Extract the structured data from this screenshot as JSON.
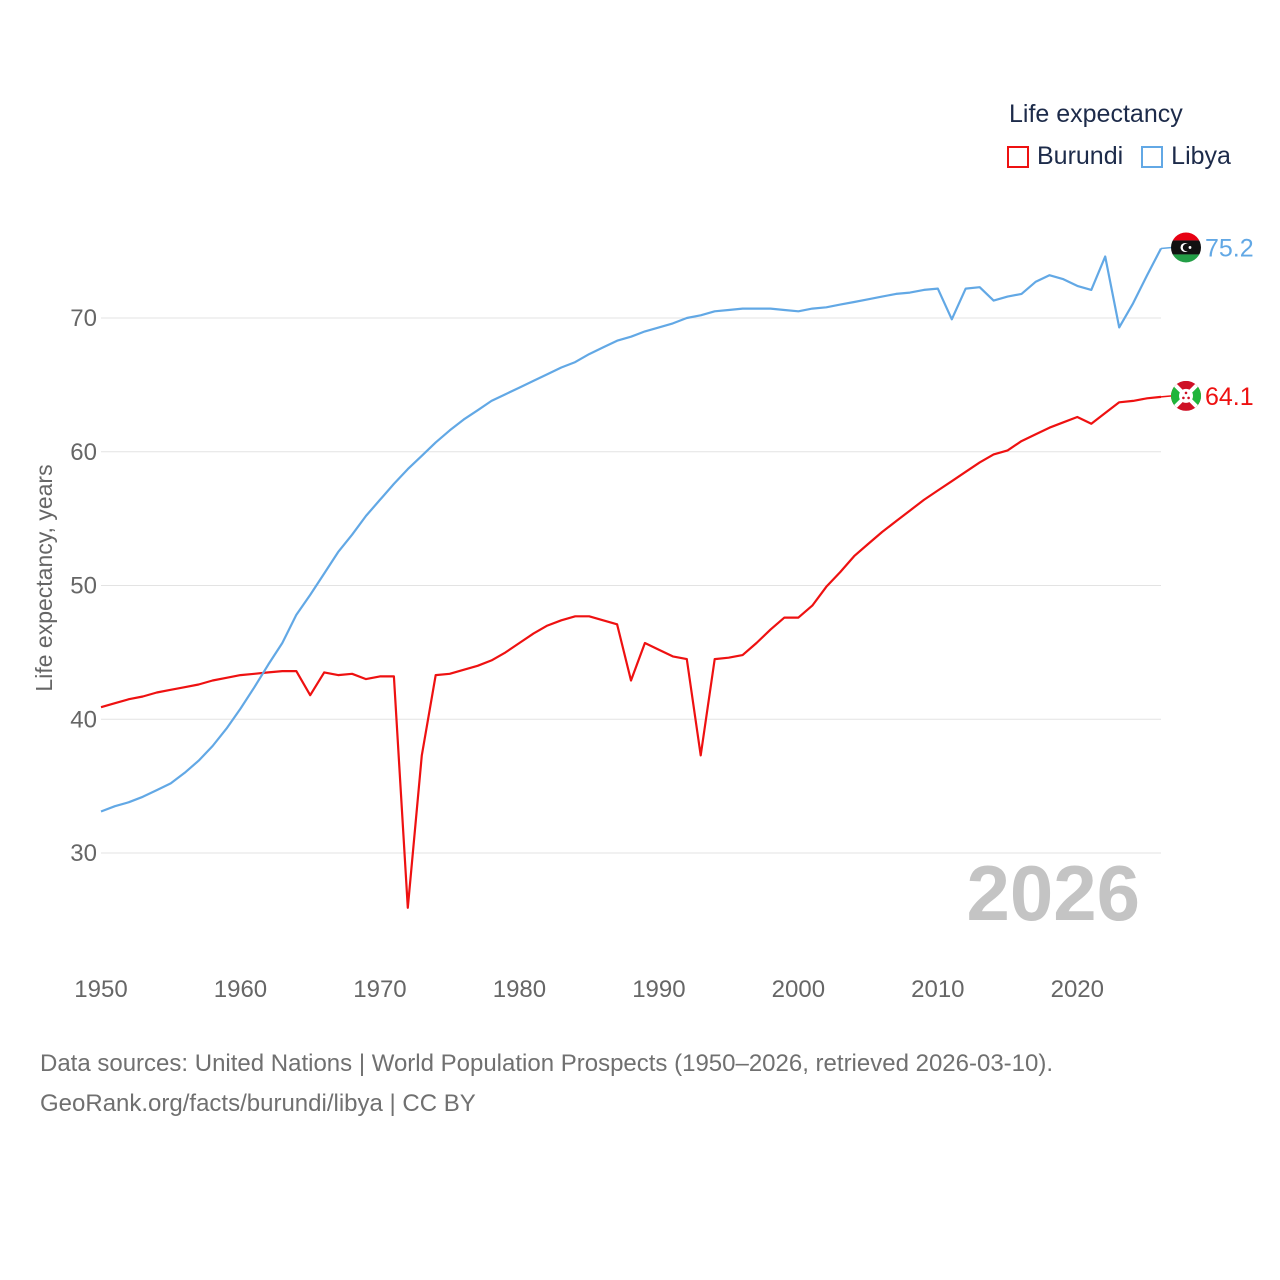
{
  "legend": {
    "title": "Life expectancy",
    "items": [
      {
        "label": "Burundi",
        "color": "#ee1111"
      },
      {
        "label": "Libya",
        "color": "#62a8e5"
      }
    ]
  },
  "year_label": "2026",
  "footer": {
    "line1": "Data sources: United Nations | World Population Prospects (1950–2026, retrieved 2026-03-10).",
    "line2": "GeoRank.org/facts/burundi/libya | CC BY"
  },
  "chart_data": {
    "type": "line",
    "title": "Life expectancy",
    "xlabel": "",
    "ylabel": "Life expectancy, years",
    "xlim": [
      1950,
      2026
    ],
    "ylim": [
      24,
      78
    ],
    "x_ticks": [
      1950,
      1960,
      1970,
      1980,
      1990,
      2000,
      2010,
      2020
    ],
    "y_ticks": [
      30,
      40,
      50,
      60,
      70
    ],
    "grid": true,
    "series": [
      {
        "name": "Burundi",
        "color": "#ee1111",
        "end_label": "64.1",
        "icon": "burundi-flag-icon",
        "points": [
          [
            1950,
            40.9
          ],
          [
            1951,
            41.2
          ],
          [
            1952,
            41.5
          ],
          [
            1953,
            41.7
          ],
          [
            1954,
            42.0
          ],
          [
            1955,
            42.2
          ],
          [
            1956,
            42.4
          ],
          [
            1957,
            42.6
          ],
          [
            1958,
            42.9
          ],
          [
            1959,
            43.1
          ],
          [
            1960,
            43.3
          ],
          [
            1961,
            43.4
          ],
          [
            1962,
            43.5
          ],
          [
            1963,
            43.6
          ],
          [
            1964,
            43.6
          ],
          [
            1965,
            41.8
          ],
          [
            1966,
            43.5
          ],
          [
            1967,
            43.3
          ],
          [
            1968,
            43.4
          ],
          [
            1969,
            43.0
          ],
          [
            1970,
            43.2
          ],
          [
            1971,
            43.2
          ],
          [
            1972,
            25.9
          ],
          [
            1973,
            37.3
          ],
          [
            1974,
            43.3
          ],
          [
            1975,
            43.4
          ],
          [
            1976,
            43.7
          ],
          [
            1977,
            44.0
          ],
          [
            1978,
            44.4
          ],
          [
            1979,
            45.0
          ],
          [
            1980,
            45.7
          ],
          [
            1981,
            46.4
          ],
          [
            1982,
            47.0
          ],
          [
            1983,
            47.4
          ],
          [
            1984,
            47.7
          ],
          [
            1985,
            47.7
          ],
          [
            1986,
            47.4
          ],
          [
            1987,
            47.1
          ],
          [
            1988,
            42.9
          ],
          [
            1989,
            45.7
          ],
          [
            1990,
            45.2
          ],
          [
            1991,
            44.7
          ],
          [
            1992,
            44.5
          ],
          [
            1993,
            37.3
          ],
          [
            1994,
            44.5
          ],
          [
            1995,
            44.6
          ],
          [
            1996,
            44.8
          ],
          [
            1997,
            45.7
          ],
          [
            1998,
            46.7
          ],
          [
            1999,
            47.6
          ],
          [
            2000,
            47.6
          ],
          [
            2001,
            48.5
          ],
          [
            2002,
            49.9
          ],
          [
            2003,
            51.0
          ],
          [
            2004,
            52.2
          ],
          [
            2005,
            53.1
          ],
          [
            2006,
            54.0
          ],
          [
            2007,
            54.8
          ],
          [
            2008,
            55.6
          ],
          [
            2009,
            56.4
          ],
          [
            2010,
            57.1
          ],
          [
            2011,
            57.8
          ],
          [
            2012,
            58.5
          ],
          [
            2013,
            59.2
          ],
          [
            2014,
            59.8
          ],
          [
            2015,
            60.1
          ],
          [
            2016,
            60.8
          ],
          [
            2017,
            61.3
          ],
          [
            2018,
            61.8
          ],
          [
            2019,
            62.2
          ],
          [
            2020,
            62.6
          ],
          [
            2021,
            62.1
          ],
          [
            2022,
            62.9
          ],
          [
            2023,
            63.7
          ],
          [
            2024,
            63.8
          ],
          [
            2025,
            64.0
          ],
          [
            2026,
            64.1
          ]
        ]
      },
      {
        "name": "Libya",
        "color": "#62a8e5",
        "end_label": "75.2",
        "icon": "libya-flag-icon",
        "points": [
          [
            1950,
            33.1
          ],
          [
            1951,
            33.5
          ],
          [
            1952,
            33.8
          ],
          [
            1953,
            34.2
          ],
          [
            1954,
            34.7
          ],
          [
            1955,
            35.2
          ],
          [
            1956,
            36.0
          ],
          [
            1957,
            36.9
          ],
          [
            1958,
            38.0
          ],
          [
            1959,
            39.3
          ],
          [
            1960,
            40.8
          ],
          [
            1961,
            42.4
          ],
          [
            1962,
            44.1
          ],
          [
            1963,
            45.7
          ],
          [
            1964,
            47.8
          ],
          [
            1965,
            49.3
          ],
          [
            1966,
            50.9
          ],
          [
            1967,
            52.5
          ],
          [
            1968,
            53.8
          ],
          [
            1969,
            55.2
          ],
          [
            1970,
            56.4
          ],
          [
            1971,
            57.6
          ],
          [
            1972,
            58.7
          ],
          [
            1973,
            59.7
          ],
          [
            1974,
            60.7
          ],
          [
            1975,
            61.6
          ],
          [
            1976,
            62.4
          ],
          [
            1977,
            63.1
          ],
          [
            1978,
            63.8
          ],
          [
            1979,
            64.3
          ],
          [
            1980,
            64.8
          ],
          [
            1981,
            65.3
          ],
          [
            1982,
            65.8
          ],
          [
            1983,
            66.3
          ],
          [
            1984,
            66.7
          ],
          [
            1985,
            67.3
          ],
          [
            1986,
            67.8
          ],
          [
            1987,
            68.3
          ],
          [
            1988,
            68.6
          ],
          [
            1989,
            69.0
          ],
          [
            1990,
            69.3
          ],
          [
            1991,
            69.6
          ],
          [
            1992,
            70.0
          ],
          [
            1993,
            70.2
          ],
          [
            1994,
            70.5
          ],
          [
            1995,
            70.6
          ],
          [
            1996,
            70.7
          ],
          [
            1997,
            70.7
          ],
          [
            1998,
            70.7
          ],
          [
            1999,
            70.6
          ],
          [
            2000,
            70.5
          ],
          [
            2001,
            70.7
          ],
          [
            2002,
            70.8
          ],
          [
            2003,
            71.0
          ],
          [
            2004,
            71.2
          ],
          [
            2005,
            71.4
          ],
          [
            2006,
            71.6
          ],
          [
            2007,
            71.8
          ],
          [
            2008,
            71.9
          ],
          [
            2009,
            72.1
          ],
          [
            2010,
            72.2
          ],
          [
            2011,
            69.9
          ],
          [
            2012,
            72.2
          ],
          [
            2013,
            72.3
          ],
          [
            2014,
            71.3
          ],
          [
            2015,
            71.6
          ],
          [
            2016,
            71.8
          ],
          [
            2017,
            72.7
          ],
          [
            2018,
            73.2
          ],
          [
            2019,
            72.9
          ],
          [
            2020,
            72.4
          ],
          [
            2021,
            72.1
          ],
          [
            2022,
            74.6
          ],
          [
            2023,
            69.3
          ],
          [
            2024,
            71.1
          ],
          [
            2025,
            73.2
          ],
          [
            2026,
            75.2
          ]
        ]
      }
    ]
  }
}
